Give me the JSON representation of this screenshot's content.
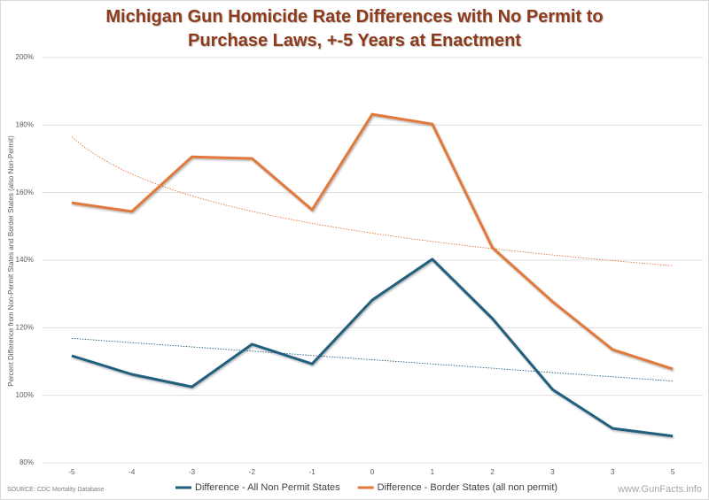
{
  "chart_data": {
    "type": "line",
    "title": "Michigan Gun Homicide Rate Differences with No Permit to Purchase Laws, +-5 Years at Enactment",
    "y_axis_label": "Percent Difference from Non-Permit States and Border States (also Non-Permit)",
    "source": "SOURCE: CDC Mortality Database",
    "watermark": "www.GunFacts.info",
    "categories": [
      "-5",
      "-4",
      "-3",
      "-2",
      "-1",
      "0",
      "1",
      "2",
      "3",
      "3",
      "5"
    ],
    "series": [
      {
        "name": "Difference - All Non Permit States",
        "color": "#215f7e",
        "trendline": "linear",
        "values": [
          111.7,
          106.2,
          102.5,
          115.1,
          109.3,
          128.2,
          140.3,
          122.7,
          101.7,
          90.2,
          87.9
        ]
      },
      {
        "name": "Difference - Border States (all non permit)",
        "color": "#e0793a",
        "trendline": "logarithmic",
        "values": [
          157,
          154.4,
          170.6,
          170.1,
          154.9,
          183.2,
          180.3,
          143.7,
          127.7,
          113.5,
          107.8
        ]
      }
    ],
    "ylim": [
      80,
      200
    ],
    "yticks": [
      {
        "value": 80,
        "label": "80%"
      },
      {
        "value": 100,
        "label": "100%"
      },
      {
        "value": 120,
        "label": "120%"
      },
      {
        "value": 140,
        "label": "140%"
      },
      {
        "value": 160,
        "label": "160%"
      },
      {
        "value": 180,
        "label": "180%"
      },
      {
        "value": 200,
        "label": "200%"
      }
    ],
    "grid": true,
    "legend": "bottom"
  }
}
